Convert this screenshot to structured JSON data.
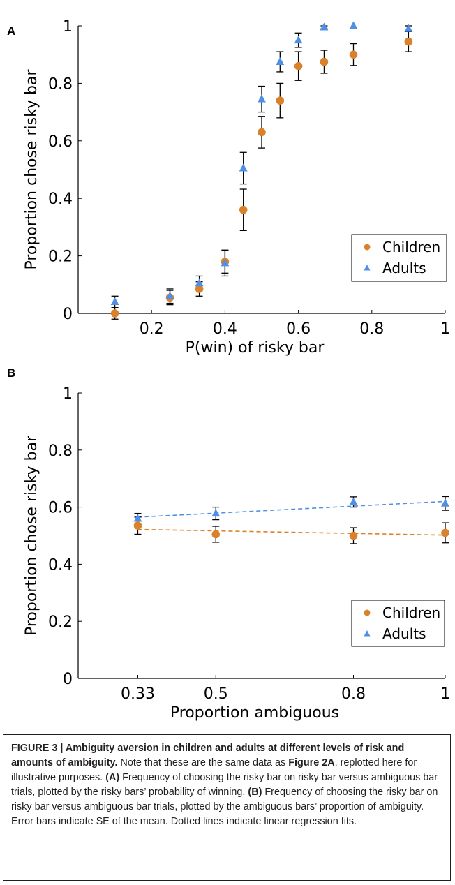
{
  "chart_data": [
    {
      "panel_label": "A",
      "type": "scatter",
      "xlabel": "P(win) of risky bar",
      "ylabel": "Proportion chose risky bar",
      "xlim": [
        0,
        1
      ],
      "ylim": [
        0,
        1
      ],
      "xticks": [
        0.2,
        0.4,
        0.6,
        0.8,
        1
      ],
      "xtick_labels": [
        "0.2",
        "0.4",
        "0.6",
        "0.8",
        "1"
      ],
      "yticks": [
        0,
        0.2,
        0.4,
        0.6,
        0.8,
        1
      ],
      "ytick_labels": [
        "0",
        "0.2",
        "0.4",
        "0.6",
        "0.8",
        "1"
      ],
      "legend_position": "lower-right",
      "series": [
        {
          "name": "Children",
          "marker": "circle",
          "color": "#d9822b",
          "x": [
            0.1,
            0.25,
            0.33,
            0.4,
            0.45,
            0.5,
            0.55,
            0.6,
            0.67,
            0.75,
            0.9
          ],
          "y": [
            0.0,
            0.055,
            0.085,
            0.18,
            0.36,
            0.63,
            0.74,
            0.86,
            0.875,
            0.9,
            0.945
          ],
          "err": [
            0.02,
            0.025,
            0.025,
            0.04,
            0.072,
            0.055,
            0.06,
            0.05,
            0.04,
            0.038,
            0.035
          ]
        },
        {
          "name": "Adults",
          "marker": "triangle",
          "color": "#4f90e6",
          "x": [
            0.1,
            0.25,
            0.33,
            0.4,
            0.45,
            0.5,
            0.55,
            0.6,
            0.67,
            0.75,
            0.9
          ],
          "y": [
            0.04,
            0.06,
            0.105,
            0.175,
            0.505,
            0.745,
            0.875,
            0.95,
            0.995,
            1.0,
            0.99
          ],
          "err": [
            0.02,
            0.025,
            0.025,
            0.045,
            0.055,
            0.045,
            0.035,
            0.025,
            0.005,
            0.0,
            0.01
          ]
        }
      ]
    },
    {
      "panel_label": "B",
      "type": "scatter",
      "xlabel": "Proportion ambiguous",
      "ylabel": "Proportion chose risky bar",
      "xlim": [
        0.2,
        1
      ],
      "ylim": [
        0,
        1
      ],
      "xticks": [
        0.33,
        0.5,
        0.8,
        1
      ],
      "xtick_labels": [
        "0.33",
        "0.5",
        "0.8",
        "1"
      ],
      "yticks": [
        0,
        0.2,
        0.4,
        0.6,
        0.8,
        1
      ],
      "ytick_labels": [
        "0",
        "0.2",
        "0.4",
        "0.6",
        "0.8",
        "1"
      ],
      "legend_position": "lower-right",
      "series": [
        {
          "name": "Children",
          "marker": "circle",
          "color": "#d9822b",
          "x": [
            0.33,
            0.5,
            0.8,
            1.0
          ],
          "y": [
            0.535,
            0.505,
            0.5,
            0.51
          ],
          "err": [
            0.03,
            0.028,
            0.028,
            0.035
          ],
          "fit": [
            [
              0.33,
              0.522
            ],
            [
              1.0,
              0.502
            ]
          ]
        },
        {
          "name": "Adults",
          "marker": "triangle",
          "color": "#4f90e6",
          "x": [
            0.33,
            0.5,
            0.8,
            1.0
          ],
          "y": [
            0.56,
            0.578,
            0.618,
            0.613
          ],
          "err": [
            0.018,
            0.022,
            0.018,
            0.024
          ],
          "fit": [
            [
              0.33,
              0.565
            ],
            [
              1.0,
              0.62
            ]
          ]
        }
      ]
    }
  ],
  "caption": {
    "figure_label": "FIGURE 3 | Ambiguity aversion in children and adults at different levels of risk and amounts of ambiguity.",
    "text_1": " Note that these are the same data as ",
    "figure_ref": "Figure 2A",
    "text_2": ", replotted here for illustrative purposes. ",
    "panel_a_label": "(A)",
    "panel_a_text": " Frequency of choosing the risky bar on risky bar versus ambiguous bar trials, plotted by the risky bars’ probability of winning. ",
    "panel_b_label": "(B)",
    "panel_b_text": " Frequency of choosing the risky bar on risky bar versus ambiguous bar trials, plotted by the ambiguous bars’ proportion of ambiguity. Error bars indicate SE of the mean. Dotted lines indicate linear regression fits."
  }
}
